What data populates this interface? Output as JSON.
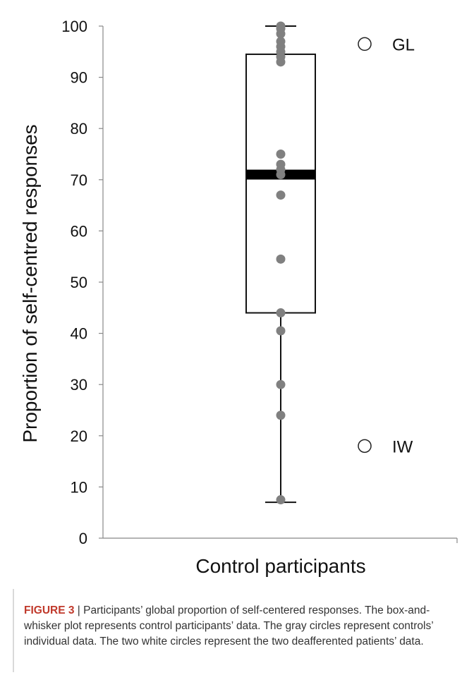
{
  "chart_data": {
    "type": "box",
    "xlabel": "Control participants",
    "ylabel": "Proportion of self-centred responses",
    "ylim": [
      0,
      100
    ],
    "yticks": [
      0,
      10,
      20,
      30,
      40,
      50,
      60,
      70,
      80,
      90,
      100
    ],
    "grid": false,
    "box": {
      "category": "Control participants",
      "whisker_low": 7,
      "q1": 44,
      "median": 71,
      "q3": 94.5,
      "whisker_high": 100
    },
    "control_points": [
      100,
      99.5,
      98.5,
      97,
      96,
      95,
      94,
      93,
      75,
      73,
      72,
      71,
      67,
      54.5,
      44,
      40.5,
      30,
      24,
      7.5
    ],
    "patients": [
      {
        "label": "GL",
        "value": 96.5
      },
      {
        "label": "IW",
        "value": 18
      }
    ],
    "colors": {
      "control_points": "#808080",
      "patients_fill": "#ffffff",
      "median": "#000000",
      "axis": "#888888"
    }
  },
  "caption": {
    "label": "FIGURE 3",
    "separator": "|",
    "text": "Participants’ global proportion of self-centered responses. The box-and-whisker plot represents control participants’ data. The gray circles represent controls’ individual data. The two white circles represent the two deafferented patients’ data."
  }
}
